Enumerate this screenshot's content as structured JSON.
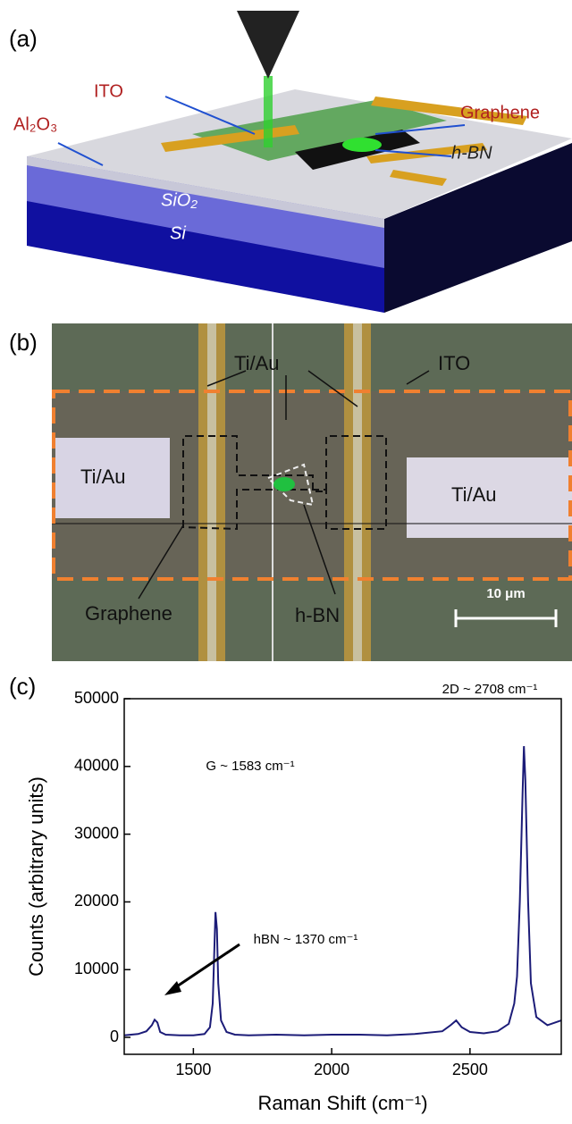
{
  "panel_a": {
    "label": "(a)",
    "texts": [
      "ITO",
      "Al₂O₃",
      "Graphene",
      "h-BN",
      "SiO₂",
      "Si"
    ]
  },
  "panel_b": {
    "label": "(b)",
    "texts": [
      "Ti/Au",
      "ITO",
      "Ti/Au",
      "Ti/Au",
      "Graphene",
      "h-BN"
    ],
    "scale_bar": "10 μm"
  },
  "chart_data": {
    "type": "line",
    "panel_label": "(c)",
    "x_label": "Raman Shift (cm⁻¹)",
    "y_label": "Counts (arbitrary units)",
    "annotations": [
      "2D ~ 2708 cm⁻¹",
      "G ~ 1583 cm⁻¹",
      "hBN ~ 1370 cm⁻¹"
    ],
    "color": "#1c1c78",
    "x": [
      1250,
      1300,
      1330,
      1350,
      1360,
      1370,
      1380,
      1400,
      1450,
      1500,
      1540,
      1560,
      1570,
      1575,
      1580,
      1585,
      1590,
      1600,
      1620,
      1650,
      1700,
      1800,
      1900,
      2000,
      2100,
      2200,
      2300,
      2400,
      2430,
      2450,
      2470,
      2500,
      2550,
      2600,
      2640,
      2660,
      2670,
      2680,
      2690,
      2695,
      2700,
      2710,
      2720,
      2740,
      2780,
      2830
    ],
    "values": [
      300,
      500,
      900,
      1800,
      2600,
      2200,
      800,
      400,
      300,
      300,
      500,
      1500,
      5000,
      12000,
      18500,
      16000,
      8000,
      2500,
      800,
      400,
      300,
      400,
      300,
      400,
      400,
      300,
      500,
      900,
      1800,
      2500,
      1500,
      800,
      600,
      900,
      2000,
      5000,
      9000,
      20000,
      36000,
      43000,
      38000,
      20000,
      8000,
      3000,
      1800,
      2500
    ],
    "xlim": [
      1250,
      2830
    ],
    "ylim": [
      -2500,
      50000
    ],
    "xticks": [
      1500,
      2000,
      2500
    ],
    "yticks": [
      0,
      10000,
      20000,
      30000,
      40000,
      50000
    ]
  }
}
